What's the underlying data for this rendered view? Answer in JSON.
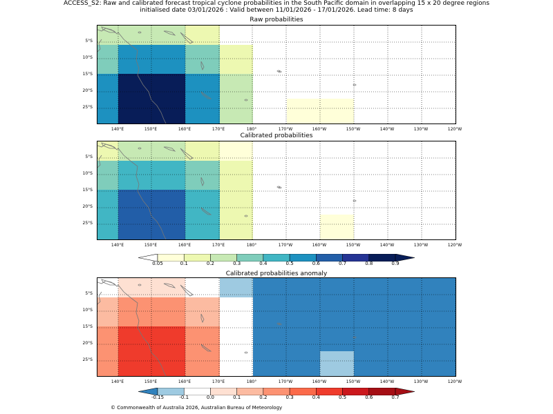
{
  "header": {
    "line1": "ACCESS_S2: Raw and calibrated forecast tropical cyclone probabilities in the South Pacific domain in overlapping 15 x 20 degree regions",
    "line2": "initialised date 03/01/2026 :  Valid between 11/01/2026 - 17/01/2026. Lead time: 8 days"
  },
  "panels": [
    {
      "title": "Raw probabilities",
      "id": "raw"
    },
    {
      "title": "Calibrated probabilities",
      "id": "cal"
    },
    {
      "title": "Calibrated probabilities anomaly",
      "id": "anom"
    }
  ],
  "lat_labels": [
    "5°S",
    "10°S",
    "15°S",
    "20°S",
    "25°S"
  ],
  "lon_labels": [
    "140°E",
    "150°E",
    "160°E",
    "170°E",
    "180°",
    "170°W",
    "160°W",
    "150°W",
    "140°W",
    "130°W",
    "120°W"
  ],
  "prob_colorbar": {
    "labels": [
      "0.05",
      "0.1",
      "0.2",
      "0.3",
      "0.4",
      "0.5",
      "0.6",
      "0.7",
      "0.8",
      "0.9"
    ],
    "colors": [
      "#ffffff",
      "#ffffd9",
      "#edf8b1",
      "#c7e9b4",
      "#7fcdbb",
      "#41b6c4",
      "#1d91c0",
      "#225ea8",
      "#253494",
      "#081d58"
    ]
  },
  "anom_colorbar": {
    "labels": [
      "-0.15",
      "-0.1",
      "0.0",
      "0.1",
      "0.2",
      "0.3",
      "0.4",
      "0.5",
      "0.6",
      "0.7"
    ],
    "colors": [
      "#3182bd",
      "#9ecae1",
      "#ffffff",
      "#fee0d2",
      "#fcbba1",
      "#fc9272",
      "#fb6a4a",
      "#ef3b2c",
      "#cb181d",
      "#a50f15"
    ]
  },
  "copyright": "© Commonwealth of Australia 2026, Australian Bureau of Meteorology"
}
